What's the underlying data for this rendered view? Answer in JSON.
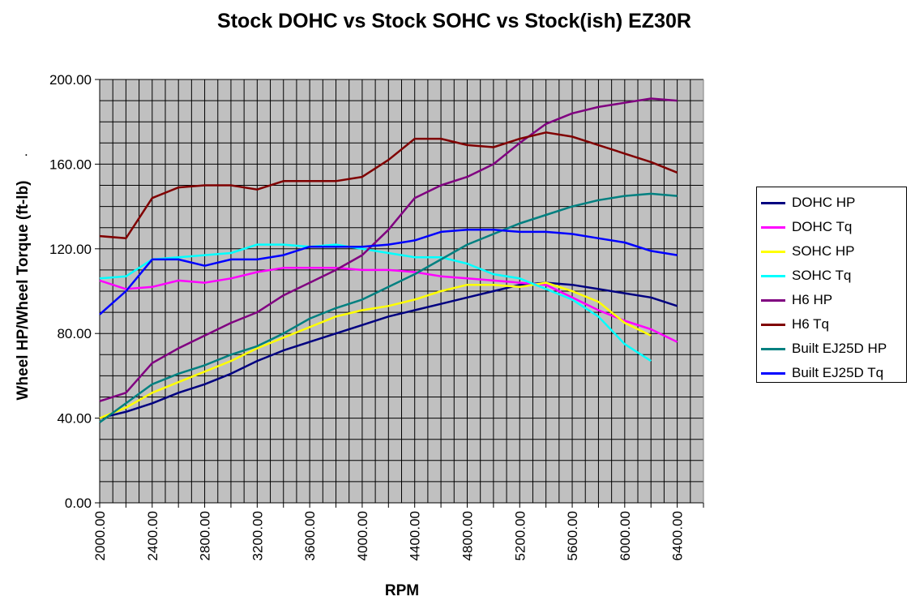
{
  "chart_data": {
    "type": "line",
    "title": "Stock DOHC vs Stock SOHC vs Stock(ish) EZ30R",
    "xlabel": "RPM",
    "ylabel": "Wheel HP/Wheel Torque (ft-lb)",
    "ylabel_mark": ".",
    "ylim": [
      0,
      200
    ],
    "xlim": [
      2000,
      6600
    ],
    "y_ticks": [
      "0.00",
      "40.00",
      "80.00",
      "120.00",
      "160.00",
      "200.00"
    ],
    "x_ticks": [
      "2000.00",
      "2400.00",
      "2800.00",
      "3200.00",
      "3600.00",
      "4000.00",
      "4400.00",
      "4800.00",
      "5200.00",
      "5600.00",
      "6000.00",
      "6400.00"
    ],
    "grid": true,
    "legend_position": "right",
    "plot_background": "#c0c0c0",
    "x": [
      2000,
      2200,
      2400,
      2600,
      2800,
      3000,
      3200,
      3400,
      3600,
      3800,
      4000,
      4200,
      4400,
      4600,
      4800,
      5000,
      5200,
      5400,
      5600,
      5800,
      6000,
      6200,
      6400
    ],
    "series": [
      {
        "name": "DOHC HP",
        "color": "#000080",
        "values": [
          40,
          43,
          47,
          52,
          56,
          61,
          67,
          72,
          76,
          80,
          84,
          88,
          91,
          94,
          97,
          100,
          103,
          104,
          103,
          101,
          99,
          97,
          93
        ]
      },
      {
        "name": "DOHC Tq",
        "color": "#ff00ff",
        "values": [
          105,
          101,
          102,
          105,
          104,
          106,
          109,
          111,
          111,
          111,
          110,
          110,
          109,
          107,
          106,
          105,
          104,
          103,
          97,
          91,
          86,
          82,
          76
        ]
      },
      {
        "name": "SOHC HP",
        "color": "#ffff00",
        "values": [
          40,
          45,
          52,
          57,
          62,
          67,
          73,
          78,
          83,
          88,
          91,
          93,
          96,
          100,
          103,
          103,
          102,
          104,
          100,
          95,
          85,
          79,
          null
        ]
      },
      {
        "name": "SOHC Tq",
        "color": "#00ffff",
        "values": [
          106,
          107,
          115,
          116,
          117,
          118,
          122,
          122,
          121,
          122,
          120,
          118,
          116,
          116,
          113,
          108,
          106,
          101,
          96,
          88,
          75,
          67,
          null
        ]
      },
      {
        "name": "H6 HP",
        "color": "#800080",
        "values": [
          48,
          52,
          66,
          73,
          79,
          85,
          90,
          98,
          104,
          110,
          117,
          129,
          144,
          150,
          154,
          160,
          170,
          179,
          184,
          187,
          189,
          191,
          190
        ]
      },
      {
        "name": "H6 Tq",
        "color": "#800000",
        "values": [
          126,
          125,
          144,
          149,
          150,
          150,
          148,
          152,
          152,
          152,
          154,
          162,
          172,
          172,
          169,
          168,
          172,
          175,
          173,
          169,
          165,
          161,
          156
        ]
      },
      {
        "name": "Built EJ25D HP",
        "color": "#008080",
        "values": [
          38,
          47,
          56,
          61,
          65,
          70,
          74,
          80,
          87,
          92,
          96,
          102,
          108,
          115,
          122,
          127,
          132,
          136,
          140,
          143,
          145,
          146,
          145
        ]
      },
      {
        "name": "Built EJ25D Tq",
        "color": "#0000ff",
        "values": [
          89,
          100,
          115,
          115,
          112,
          115,
          115,
          117,
          121,
          121,
          121,
          122,
          124,
          128,
          129,
          129,
          128,
          128,
          127,
          125,
          123,
          119,
          117
        ]
      }
    ]
  }
}
